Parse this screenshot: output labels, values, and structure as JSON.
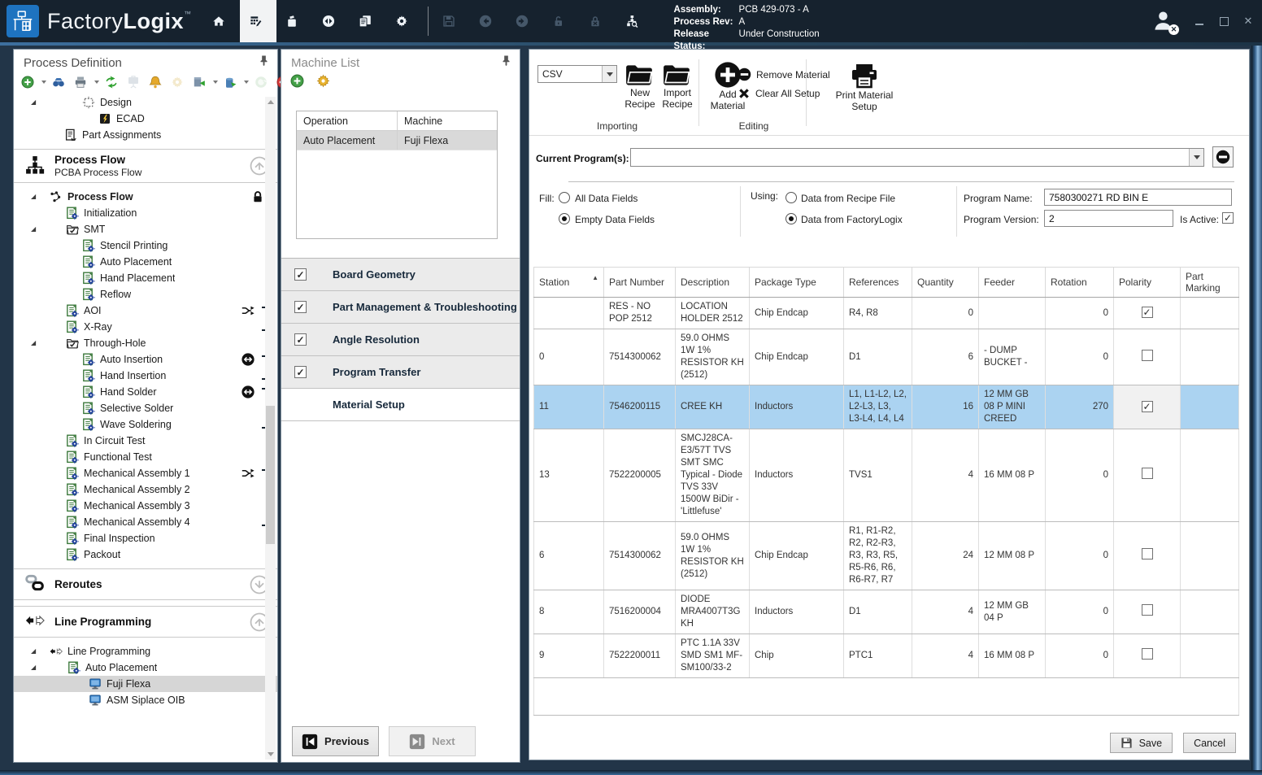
{
  "titlebar": {
    "logo": {
      "part1": "Factory",
      "part2": "Logix",
      "tm": "™"
    },
    "icons": [
      {
        "name": "home",
        "state": "normal"
      },
      {
        "name": "process-editor",
        "state": "selected"
      },
      {
        "name": "materials",
        "state": "normal"
      },
      {
        "name": "transfer",
        "state": "normal"
      },
      {
        "name": "documents",
        "state": "normal"
      },
      {
        "name": "settings",
        "state": "normal"
      },
      {
        "name": "separator"
      },
      {
        "name": "save",
        "state": "disabled"
      },
      {
        "name": "back",
        "state": "disabled"
      },
      {
        "name": "forward",
        "state": "disabled"
      },
      {
        "name": "unlock",
        "state": "disabled"
      },
      {
        "name": "lock-x",
        "state": "disabled"
      },
      {
        "name": "audit-search",
        "state": "normal"
      }
    ],
    "assembly": {
      "label": "Assembly:",
      "value": "PCB 429-073 - A"
    },
    "process_rev": {
      "label": "Process Rev:",
      "value": "A"
    },
    "release_status": {
      "label": "Release Status:",
      "value": "Under Construction"
    }
  },
  "left_panel": {
    "title": "Process Definition",
    "toolbar": [
      {
        "name": "add",
        "dropdown": true
      },
      {
        "name": "find"
      },
      {
        "name": "print",
        "dropdown": true
      },
      {
        "name": "sync"
      },
      {
        "name": "presentation",
        "disabled": true
      },
      {
        "name": "notifications"
      },
      {
        "name": "settings",
        "disabled": true
      },
      {
        "name": "deploy",
        "dropdown": true
      },
      {
        "name": "delete",
        "dropdown": true
      },
      {
        "name": "refresh",
        "disabled": true
      },
      {
        "name": "remove"
      },
      {
        "name": "pause"
      }
    ],
    "tree_top": [
      {
        "label": "Design",
        "icon": "design",
        "expander": true,
        "indent": 84
      },
      {
        "label": "ECAD",
        "icon": "ecad",
        "indent": 104
      },
      {
        "label": "Part Assignments",
        "icon": "part-assignments",
        "indent": 62
      }
    ],
    "flow_section": {
      "title": "Process Flow",
      "subtitle": "PCBA Process Flow",
      "icon": "org-chart",
      "arrow": "up"
    },
    "flow_tree": [
      {
        "label": "Process Flow",
        "icon": "flow-path",
        "expander": true,
        "bold": true,
        "badge": "lock",
        "indent": 44
      },
      {
        "label": "Initialization",
        "icon": "op-doc",
        "indent": 64
      },
      {
        "label": "SMT",
        "icon": "folder-check",
        "expander": true,
        "indent": 64
      },
      {
        "label": "Stencil Printing",
        "icon": "op-doc",
        "indent": 84
      },
      {
        "label": "Auto Placement",
        "icon": "op-doc",
        "indent": 84
      },
      {
        "label": "Hand Placement",
        "icon": "op-doc",
        "indent": 84
      },
      {
        "label": "Reflow",
        "icon": "op-doc",
        "indent": 84
      },
      {
        "label": "AOI",
        "icon": "op-doc",
        "indent": 64,
        "badge": "shuffle",
        "bracket": "start"
      },
      {
        "label": "X-Ray",
        "icon": "op-doc",
        "indent": 64,
        "bracket": "end"
      },
      {
        "label": "Through-Hole",
        "icon": "folder-check",
        "expander": true,
        "indent": 64
      },
      {
        "label": "Auto Insertion",
        "icon": "op-doc",
        "indent": 84,
        "badge": "swap",
        "bracket": "start"
      },
      {
        "label": "Hand Insertion",
        "icon": "op-doc",
        "indent": 84,
        "bracket": "end"
      },
      {
        "label": "Hand Solder",
        "icon": "op-doc",
        "indent": 84,
        "badge": "swap",
        "bracket": "start"
      },
      {
        "label": "Selective Solder",
        "icon": "op-doc",
        "indent": 84,
        "bracket": "mid"
      },
      {
        "label": "Wave Soldering",
        "icon": "op-doc",
        "indent": 84,
        "bracket": "end"
      },
      {
        "label": "In Circuit Test",
        "icon": "op-doc",
        "indent": 64
      },
      {
        "label": "Functional Test",
        "icon": "op-doc",
        "indent": 64
      },
      {
        "label": "Mechanical Assembly 1",
        "icon": "op-doc",
        "indent": 64,
        "badge": "shuffle",
        "bracket": "start"
      },
      {
        "label": "Mechanical Assembly 2",
        "icon": "op-doc",
        "indent": 64,
        "bracket": "mid"
      },
      {
        "label": "Mechanical Assembly 3",
        "icon": "op-doc",
        "indent": 64,
        "bracket": "mid"
      },
      {
        "label": "Mechanical Assembly 4",
        "icon": "op-doc",
        "indent": 64,
        "bracket": "end"
      },
      {
        "label": "Final Inspection",
        "icon": "op-doc",
        "indent": 64
      },
      {
        "label": "Packout",
        "icon": "op-doc",
        "indent": 64
      }
    ],
    "reroutes_section": {
      "title": "Reroutes",
      "icon": "chain",
      "arrow": "down"
    },
    "line_section": {
      "title": "Line Programming",
      "icon": "line-arrows",
      "arrow": "up"
    },
    "line_tree": [
      {
        "label": "Line Programming",
        "icon": "line-arrows",
        "expander": true,
        "indent": 44
      },
      {
        "label": "Auto Placement",
        "icon": "op-doc",
        "expander": true,
        "indent": 66
      },
      {
        "label": "Fuji Flexa",
        "icon": "monitor",
        "indent": 92,
        "selected": true
      },
      {
        "label": "ASM Siplace OIB",
        "icon": "monitor",
        "indent": 92
      }
    ]
  },
  "machine_panel": {
    "title": "Machine List",
    "columns": [
      "Operation",
      "Machine"
    ],
    "rows": [
      {
        "operation": "Auto Placement",
        "machine": "Fuji Flexa"
      }
    ],
    "steps": [
      {
        "label": "Board Geometry",
        "checked": true
      },
      {
        "label": "Part Management & Troubleshooting",
        "checked": true
      },
      {
        "label": "Angle Resolution",
        "checked": true
      },
      {
        "label": "Program Transfer",
        "checked": true
      },
      {
        "label": "Material Setup",
        "active": true
      }
    ],
    "previous_label": "Previous",
    "next_label": "Next"
  },
  "material_panel": {
    "format_value": "CSV",
    "toolbar": {
      "new_recipe": "New Recipe",
      "import_recipe": "Import Recipe",
      "importing_group": "Importing",
      "add_material": "Add Material",
      "remove_material": "Remove Material",
      "clear_all": "Clear All Setup",
      "editing_group": "Editing",
      "print": "Print Material Setup"
    },
    "current_programs_label": "Current Program(s):",
    "fill": {
      "label": "Fill:",
      "options": [
        {
          "label": "All Data Fields",
          "selected": false
        },
        {
          "label": "Empty Data Fields",
          "selected": true
        }
      ]
    },
    "using": {
      "label": "Using:",
      "options": [
        {
          "label": "Data from Recipe File",
          "selected": false
        },
        {
          "label": "Data from FactoryLogix",
          "selected": true
        }
      ]
    },
    "program_name": {
      "label": "Program Name:",
      "value": "7580300271 RD BIN E"
    },
    "program_version": {
      "label": "Program Version:",
      "value": "2"
    },
    "is_active": {
      "label": "Is Active:",
      "checked": true
    },
    "table": {
      "columns": [
        "Station",
        "Part Number",
        "Description",
        "Package Type",
        "References",
        "Quantity",
        "Feeder",
        "Rotation",
        "Polarity",
        "Part Marking"
      ],
      "sort_column": "Station",
      "rows": [
        {
          "station": "",
          "part_number": "RES - NO POP 2512",
          "description": "LOCATION HOLDER 2512",
          "package_type": "Chip Endcap",
          "references": "R4, R8",
          "quantity": "0",
          "feeder": "",
          "rotation": "0",
          "polarity": true,
          "part_marking": "",
          "selected": false
        },
        {
          "station": "0",
          "part_number": "7514300062",
          "description": "59.0 OHMS 1W 1% RESISTOR  KH (2512)",
          "package_type": "Chip Endcap",
          "references": "D1",
          "quantity": "6",
          "feeder": "- DUMP BUCKET -",
          "rotation": "0",
          "polarity": false,
          "part_marking": "",
          "selected": false
        },
        {
          "station": "11",
          "part_number": "7546200115",
          "description": "CREE  KH",
          "package_type": "Inductors",
          "references": "L1, L1-L2, L2, L2-L3, L3, L3-L4, L4, L4",
          "quantity": "16",
          "feeder": "12 MM GB 08 P MINI CREED",
          "rotation": "270",
          "polarity": true,
          "part_marking": "",
          "selected": true
        },
        {
          "station": "13",
          "part_number": "7522200005",
          "description": "SMCJ28CA-E3/57T  TVS SMT  SMC Typical - Diode TVS 33V 1500W BiDir - 'Littlefuse'",
          "package_type": "Inductors",
          "references": "TVS1",
          "quantity": "4",
          "feeder": "16 MM 08 P",
          "rotation": "0",
          "polarity": false,
          "part_marking": "",
          "selected": false
        },
        {
          "station": "6",
          "part_number": "7514300062",
          "description": "59.0 OHMS 1W 1% RESISTOR  KH (2512)",
          "package_type": "Chip Endcap",
          "references": "R1, R1-R2, R2, R2-R3, R3, R3, R5, R5-R6, R6, R6-R7, R7",
          "quantity": "24",
          "feeder": "12 MM 08 P",
          "rotation": "0",
          "polarity": false,
          "part_marking": "",
          "selected": false
        },
        {
          "station": "8",
          "part_number": "7516200004",
          "description": "DIODE MRA4007T3G  KH",
          "package_type": "Inductors",
          "references": "D1",
          "quantity": "4",
          "feeder": "12 MM GB 04 P",
          "rotation": "0",
          "polarity": false,
          "part_marking": "",
          "selected": false
        },
        {
          "station": "9",
          "part_number": "7522200011",
          "description": "PTC 1.1A 33V SMD SM1 MF-SM100/33-2",
          "package_type": "Chip",
          "references": "PTC1",
          "quantity": "4",
          "feeder": "16 MM 08 P",
          "rotation": "0",
          "polarity": false,
          "part_marking": "",
          "selected": false
        }
      ]
    },
    "save_label": "Save",
    "cancel_label": "Cancel"
  }
}
